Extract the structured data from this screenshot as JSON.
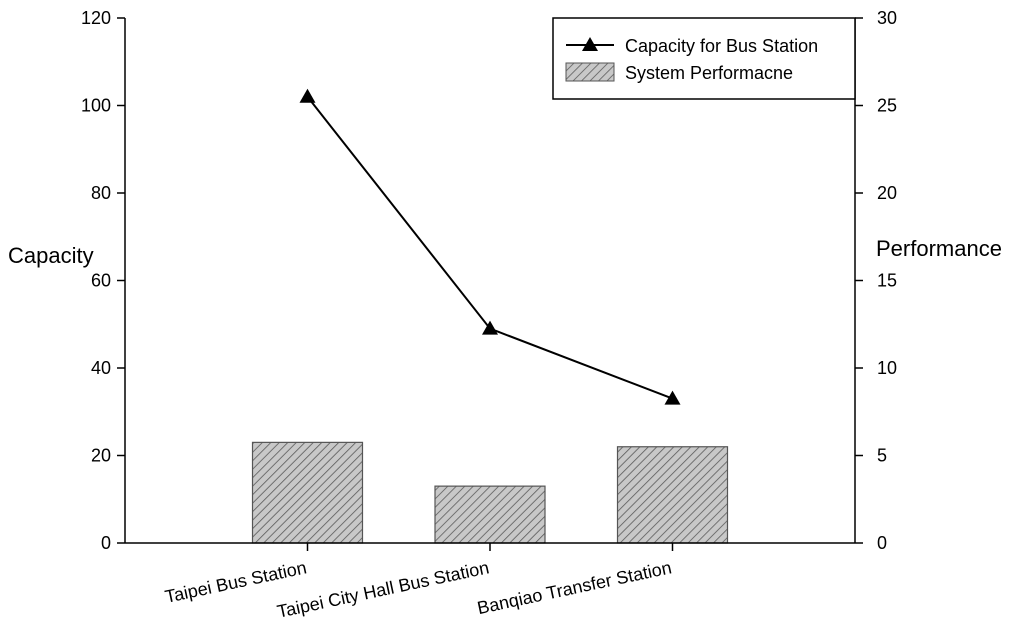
{
  "chart_data": {
    "type": "bar",
    "title": "",
    "categories": [
      "Taipei Bus Station",
      "Taipei City Hall Bus Station",
      "Banqiao Transfer Station"
    ],
    "series": [
      {
        "name": "Capacity for Bus Station",
        "kind": "line",
        "axis": "left",
        "marker": "triangle",
        "color": "#000000",
        "values": [
          102,
          49,
          33
        ]
      },
      {
        "name": "System Performacne",
        "kind": "bar",
        "axis": "right",
        "fill": "#c0c0c0",
        "hatch": "diagonal",
        "values": [
          5.75,
          3.25,
          5.5
        ]
      }
    ],
    "ylabel": "Capacity",
    "ylabel_right": "Performance",
    "xlabel": "",
    "ylim": [
      0,
      120
    ],
    "ylim_right": [
      0,
      30
    ],
    "yticks": [
      0,
      20,
      40,
      60,
      80,
      100,
      120
    ],
    "yticks_right": [
      0,
      5,
      10,
      15,
      20,
      25,
      30
    ],
    "grid": false,
    "legend_position": "top-right"
  }
}
